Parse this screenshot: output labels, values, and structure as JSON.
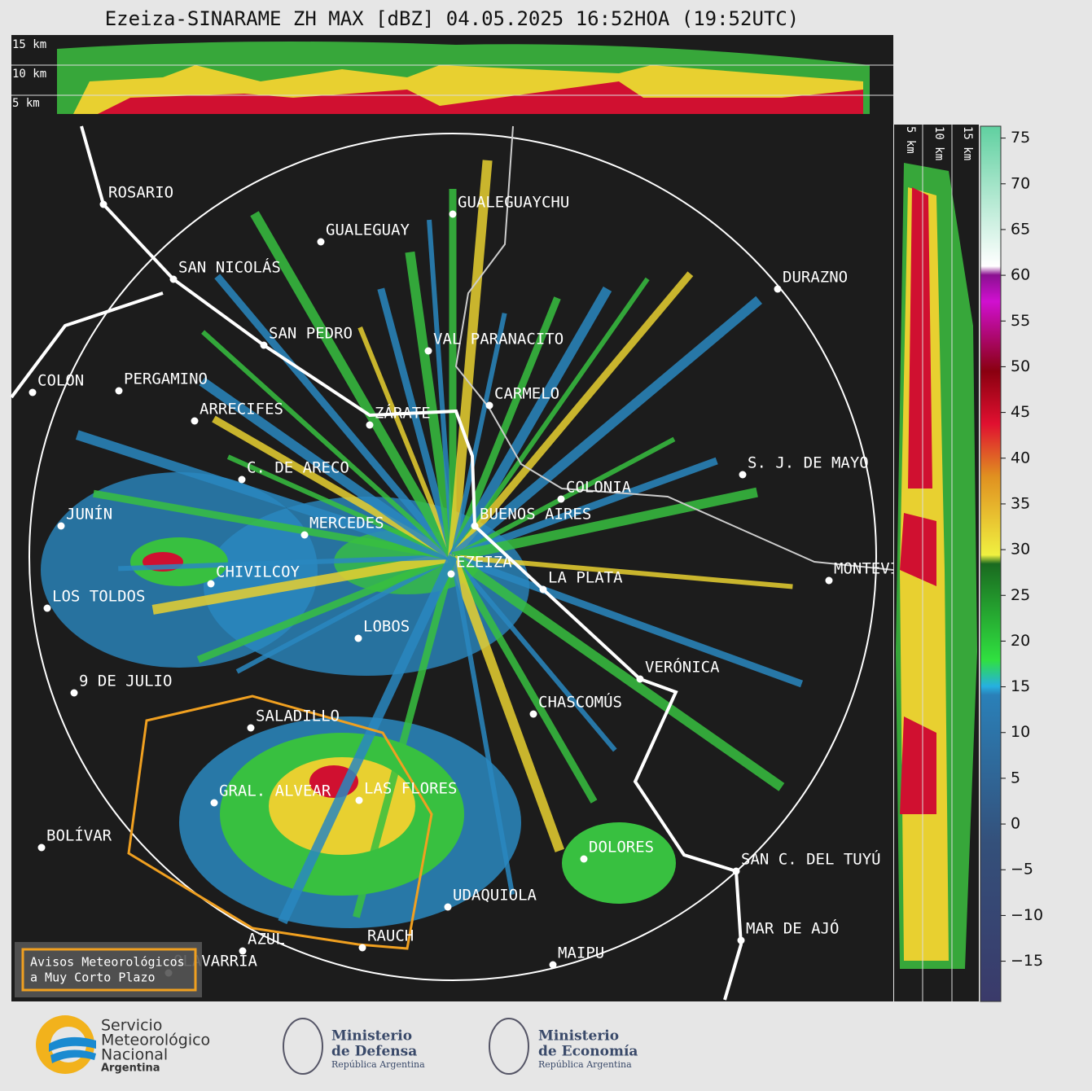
{
  "title": "Ezeiza-SINARAME ZH MAX [dBZ] 04.05.2025 16:52HOA (19:52UTC)",
  "top_section": {
    "height_labels": [
      "15 km",
      "10 km",
      "5 km"
    ]
  },
  "side_section": {
    "height_labels": [
      "5 km",
      "10 km",
      "15 km"
    ]
  },
  "colorbar": {
    "range": [
      -19.4,
      76.3
    ],
    "ticks": [
      75,
      70,
      65,
      60,
      55,
      50,
      45,
      40,
      35,
      30,
      25,
      20,
      15,
      10,
      5,
      0,
      {
        "value": -5,
        "label": "−5"
      },
      {
        "value": -10,
        "label": "−10"
      },
      {
        "value": -15,
        "label": "−15"
      }
    ]
  },
  "cities": [
    "ROSARIO",
    "GUALEGUAYCHU",
    "GUALEGUAY",
    "SAN NICOLÁS",
    "DURAZNO",
    "SAN PEDRO",
    "VAL PARANACITO",
    "COLON",
    "PERGAMINO",
    "CARMELO",
    "ARRECIFES",
    "ZÁRATE",
    "S. J. DE MAYO",
    "C. DE ARECO",
    "COLONIA",
    "JUNÍN",
    "BUENOS AIRES",
    "MERCEDES",
    "EZEIZA",
    "CHIVILCOY",
    "LA PLATA",
    "MONTEVIDEO",
    "LOS TOLDOS",
    "LOBOS",
    "VERÓNICA",
    "9 DE JULIO",
    "CHASCOMÚS",
    "SALADILLO",
    "GRAL. ALVEAR",
    "LAS FLORES",
    "BOLÍVAR",
    "DOLORES",
    "SAN C. DEL TUYÚ",
    "UDAQUIOLA",
    "MAR DE AJÓ",
    "AZUL",
    "RAUCH",
    "OLAVARRÍA",
    "MAIPU"
  ],
  "warning_legend": [
    "Avisos Meteorológicos",
    "a Muy Corto Plazo"
  ],
  "logos": {
    "smn": [
      "Servicio",
      "Meteorológico",
      "Nacional",
      "Argentina"
    ],
    "defensa": [
      "Ministerio",
      "de Defensa",
      "República Argentina"
    ],
    "economia": [
      "Ministerio",
      "de Economía",
      "República Argentina"
    ]
  }
}
